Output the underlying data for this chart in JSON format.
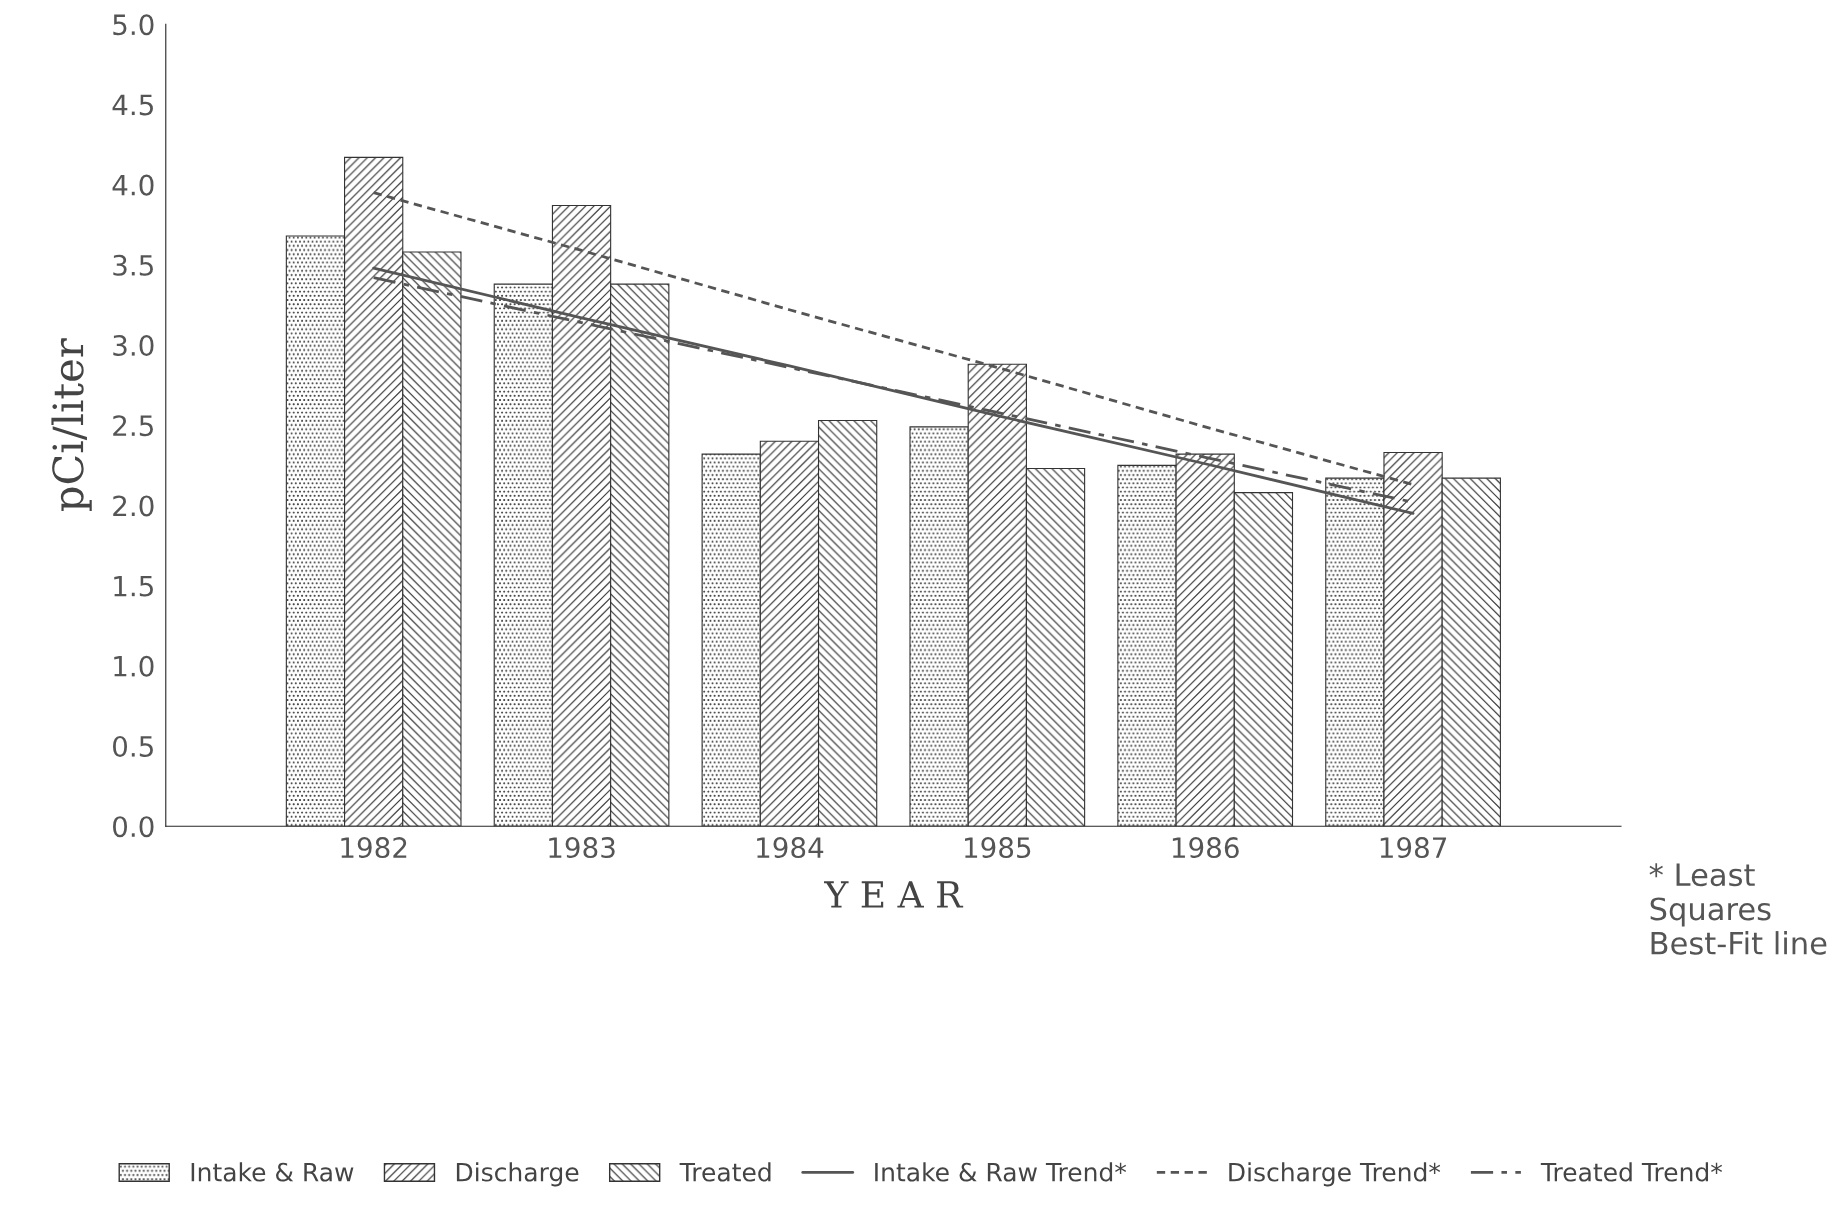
{
  "chart_data": {
    "type": "bar",
    "ylabel": "pCi/liter",
    "xlabel": "Y E A R",
    "categories": [
      "1982",
      "1983",
      "1984",
      "1985",
      "1986",
      "1987"
    ],
    "series": [
      {
        "name": "Intake & Raw",
        "color": "#333333",
        "values": [
          3.68,
          3.38,
          2.32,
          2.49,
          2.25,
          2.17
        ]
      },
      {
        "name": "Discharge",
        "color": "#333333",
        "values": [
          4.17,
          3.87,
          2.4,
          2.88,
          2.32,
          2.33
        ]
      },
      {
        "name": "Treated",
        "color": "#333333",
        "values": [
          3.58,
          3.38,
          2.53,
          2.23,
          2.08,
          2.17
        ]
      },
      {
        "name": "Intake & Raw Trend*",
        "type": "line",
        "line_style": "solid",
        "color": "#555555",
        "values": [
          3.48,
          3.17,
          2.87,
          2.56,
          2.26,
          1.95
        ]
      },
      {
        "name": "Discharge Trend*",
        "type": "line",
        "line_style": "dotted",
        "color": "#555555",
        "values": [
          3.95,
          3.59,
          3.22,
          2.86,
          2.49,
          2.13
        ]
      },
      {
        "name": "Treated Trend*",
        "type": "line",
        "line_style": "dashed",
        "color": "#555555",
        "values": [
          3.42,
          3.14,
          2.86,
          2.58,
          2.3,
          2.02
        ]
      }
    ],
    "ylim": [
      0,
      5
    ],
    "yticks": [
      {
        "value": 0,
        "label": "0.0"
      },
      {
        "value": 0.5,
        "label": "0.5"
      },
      {
        "value": 1,
        "label": "1.0"
      },
      {
        "value": 1.5,
        "label": "1.5"
      },
      {
        "value": 2,
        "label": "2.0"
      },
      {
        "value": 2.5,
        "label": "2.5"
      },
      {
        "value": 3,
        "label": "3.0"
      },
      {
        "value": 3.5,
        "label": "3.5"
      },
      {
        "value": 4,
        "label": "4.0"
      },
      {
        "value": 4.5,
        "label": "4.5"
      },
      {
        "value": 5,
        "label": "5.0"
      }
    ],
    "annotations": [
      "* Least Squares Best-Fit line"
    ],
    "legend": "bottom",
    "grid": false
  }
}
